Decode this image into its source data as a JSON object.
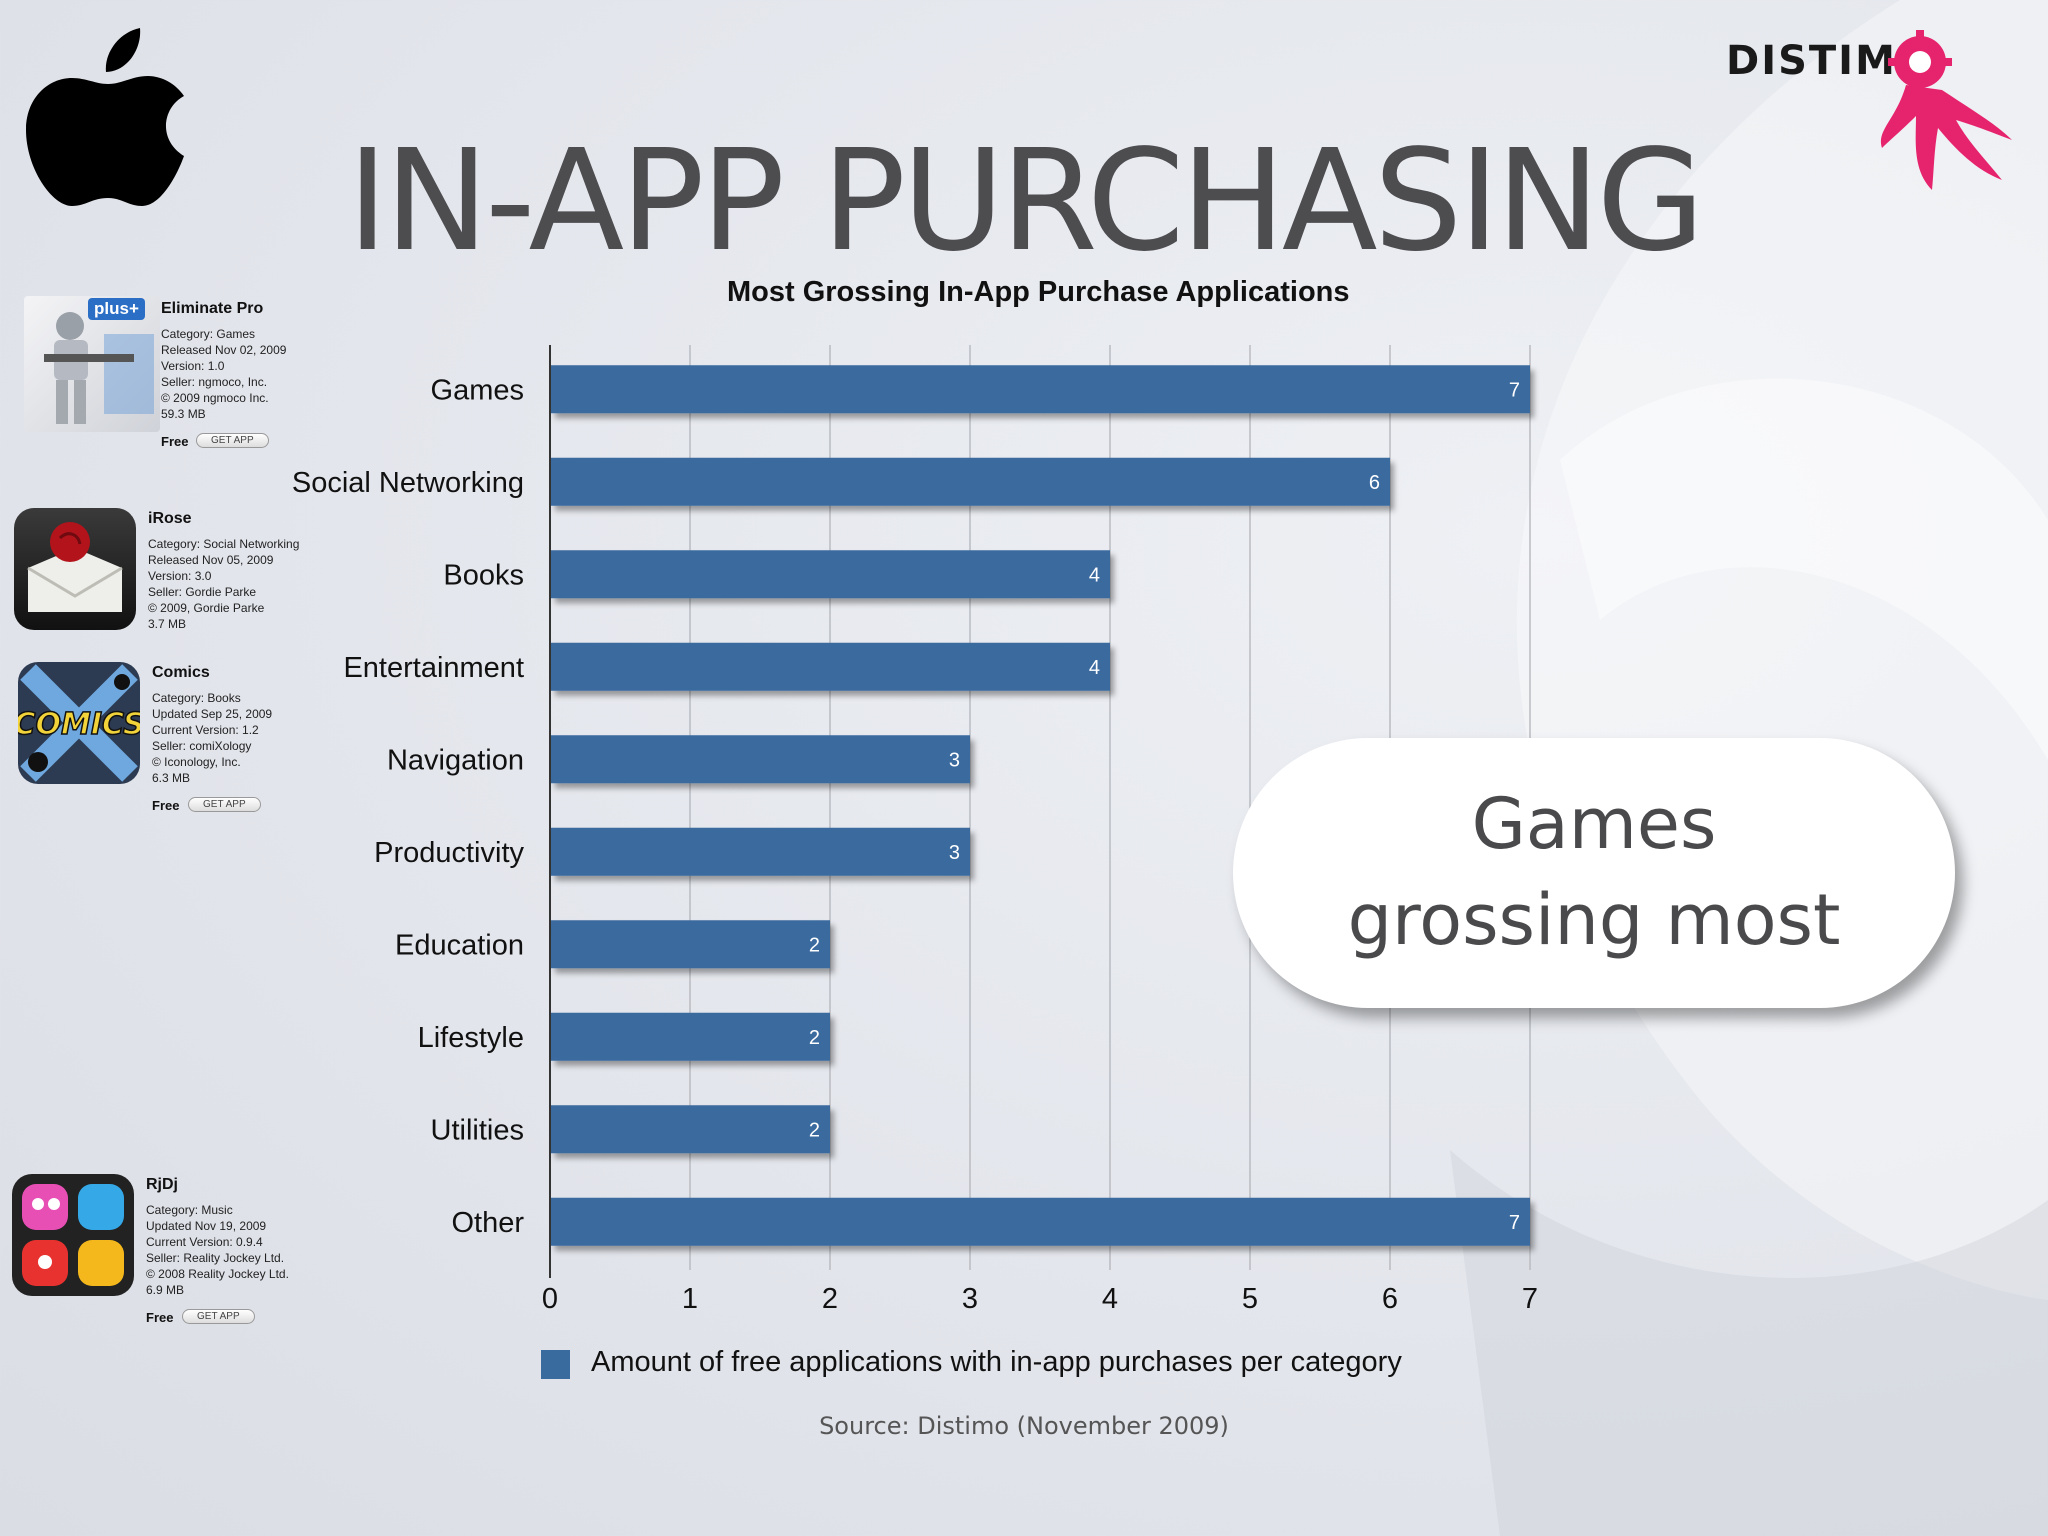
{
  "slide": {
    "title": "IN-APP PURCHASING",
    "source": "Source: Distimo (November 2009)",
    "callout_line1": "Games",
    "callout_line2": "grossing most",
    "brand": "DISTIMO"
  },
  "apps": [
    {
      "name": "Eliminate Pro",
      "meta": [
        "Category: Games",
        "Released Nov 02, 2009",
        "Version: 1.0",
        "Seller: ngmoco, Inc.",
        "© 2009 ngmoco Inc.",
        "59.3 MB"
      ],
      "price": "Free",
      "button": "GET APP",
      "badge": "plus+"
    },
    {
      "name": "iRose",
      "meta": [
        "Category: Social Networking",
        "Released Nov 05, 2009",
        "Version: 3.0",
        "Seller: Gordie Parke",
        "© 2009, Gordie Parke",
        "3.7 MB"
      ],
      "price": "",
      "button": ""
    },
    {
      "name": "Comics",
      "meta": [
        "Category: Books",
        "Updated Sep 25, 2009",
        "Current Version: 1.2",
        "Seller: comiXology",
        "© Iconology, Inc.",
        "6.3 MB"
      ],
      "price": "Free",
      "button": "GET APP",
      "icon_text": "COMICS"
    },
    {
      "name": "RjDj",
      "meta": [
        "Category: Music",
        "Updated Nov 19, 2009",
        "Current Version: 0.9.4",
        "Seller: Reality Jockey Ltd.",
        "© 2008 Reality Jockey Ltd.",
        "6.9 MB"
      ],
      "price": "Free",
      "button": "GET APP"
    }
  ],
  "colors": {
    "bar": "#3a6b9f",
    "accent": "#e6246e"
  },
  "chart_data": {
    "type": "bar",
    "orientation": "horizontal",
    "title": "Most Grossing In-App Purchase Applications",
    "categories": [
      "Games",
      "Social Networking",
      "Books",
      "Entertainment",
      "Navigation",
      "Productivity",
      "Education",
      "Lifestyle",
      "Utilities",
      "Other"
    ],
    "series": [
      {
        "name": "Amount of free applications with in-app purchases per category",
        "values": [
          7,
          6,
          4,
          4,
          3,
          3,
          2,
          2,
          2,
          7
        ]
      }
    ],
    "xlim": [
      0,
      7
    ],
    "xticks": [
      0,
      1,
      2,
      3,
      4,
      5,
      6,
      7
    ],
    "grid": true,
    "legend": "bottom"
  }
}
